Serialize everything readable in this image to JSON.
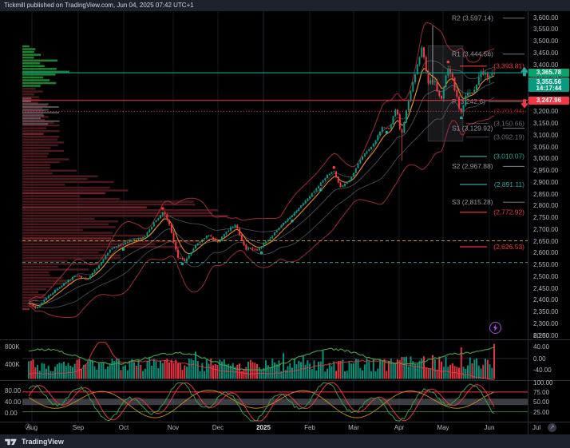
{
  "header": {
    "publish_note": "Tickmill published on TradingView.com, Jun 04, 2025 07:42 UTC+1"
  },
  "footer": {
    "brand": "TradingView"
  },
  "price_axis": {
    "max": 3600,
    "min": 2250,
    "step": 50,
    "boxes": {
      "current": {
        "text": "3,365.78",
        "price": 3365.78,
        "bg": "#0aa26c"
      },
      "countdown": {
        "line1": "3,355.56",
        "line2": "14:17:44",
        "price": 3355.56,
        "bg": "#089981"
      },
      "lower": {
        "text": "3,247.96",
        "price": 3247.96,
        "bg": "#f23645"
      }
    }
  },
  "chart_data": {
    "type": "candlestick",
    "bars": 213,
    "ylim": [
      2250,
      3650
    ],
    "x_months": [
      "Aug",
      "Sep",
      "Oct",
      "Nov",
      "Dec",
      "2025",
      "Feb",
      "Mar",
      "Apr",
      "May",
      "Jun",
      "Jul"
    ],
    "last_price": 3365.78,
    "price_path_anchors": [
      [
        0,
        2390
      ],
      [
        0.015,
        2362
      ],
      [
        0.04,
        2415
      ],
      [
        0.07,
        2462
      ],
      [
        0.1,
        2505
      ],
      [
        0.125,
        2488
      ],
      [
        0.15,
        2545
      ],
      [
        0.175,
        2618
      ],
      [
        0.2,
        2638
      ],
      [
        0.225,
        2655
      ],
      [
        0.25,
        2672
      ],
      [
        0.275,
        2745
      ],
      [
        0.29,
        2778
      ],
      [
        0.305,
        2700
      ],
      [
        0.32,
        2585
      ],
      [
        0.335,
        2568
      ],
      [
        0.36,
        2635
      ],
      [
        0.385,
        2678
      ],
      [
        0.405,
        2645
      ],
      [
        0.43,
        2700
      ],
      [
        0.445,
        2718
      ],
      [
        0.465,
        2618
      ],
      [
        0.49,
        2615
      ],
      [
        0.515,
        2655
      ],
      [
        0.54,
        2712
      ],
      [
        0.565,
        2758
      ],
      [
        0.59,
        2812
      ],
      [
        0.615,
        2868
      ],
      [
        0.64,
        2928
      ],
      [
        0.655,
        2950
      ],
      [
        0.67,
        2878
      ],
      [
        0.69,
        2912
      ],
      [
        0.715,
        3005
      ],
      [
        0.74,
        3062
      ],
      [
        0.76,
        3135
      ],
      [
        0.775,
        3128
      ],
      [
        0.79,
        3222
      ],
      [
        0.8,
        3095
      ],
      [
        0.815,
        3242
      ],
      [
        0.83,
        3355
      ],
      [
        0.845,
        3478
      ],
      [
        0.858,
        3322
      ],
      [
        0.872,
        3335
      ],
      [
        0.885,
        3238
      ],
      [
        0.9,
        3392
      ],
      [
        0.912,
        3328
      ],
      [
        0.928,
        3182
      ],
      [
        0.944,
        3295
      ],
      [
        0.958,
        3288
      ],
      [
        0.972,
        3372
      ],
      [
        0.985,
        3352
      ],
      [
        1,
        3365.78
      ]
    ],
    "volume_profile_envelope": [
      [
        2355,
        10
      ],
      [
        2390,
        20
      ],
      [
        2430,
        34
      ],
      [
        2470,
        52
      ],
      [
        2505,
        58
      ],
      [
        2540,
        70
      ],
      [
        2570,
        85
      ],
      [
        2600,
        120
      ],
      [
        2635,
        175
      ],
      [
        2665,
        160
      ],
      [
        2690,
        115
      ],
      [
        2720,
        135
      ],
      [
        2760,
        195
      ],
      [
        2790,
        205
      ],
      [
        2820,
        165
      ],
      [
        2860,
        110
      ],
      [
        2910,
        84
      ],
      [
        2960,
        66
      ],
      [
        3000,
        56
      ],
      [
        3040,
        50
      ],
      [
        3080,
        46
      ],
      [
        3120,
        40
      ],
      [
        3160,
        44
      ],
      [
        3200,
        34
      ],
      [
        3230,
        22
      ],
      [
        3260,
        18
      ],
      [
        3295,
        24
      ],
      [
        3330,
        42
      ],
      [
        3370,
        55
      ],
      [
        3410,
        42
      ],
      [
        3450,
        16
      ],
      [
        3480,
        12
      ]
    ],
    "levels": [
      {
        "text": "R2 (3,597.14)",
        "price": 3597.14,
        "kind": "pivot"
      },
      {
        "text": "R1 (3,444.56)",
        "price": 3444.56,
        "kind": "pivot"
      },
      {
        "text": "(3,393.81)",
        "price": 3393.81,
        "kind": "mid",
        "color": "#f23645"
      },
      {
        "text": "P (3,242.6)",
        "price": 3242.6,
        "kind": "pivot-hidden"
      },
      {
        "text": "(3,201.94)",
        "price": 3201.94,
        "kind": "mid-dim",
        "color": "#f23645"
      },
      {
        "text": "(3,150.66)",
        "price": 3150.66,
        "kind": "mid-gray",
        "color": "#787b86"
      },
      {
        "text": "S1 (3,129.92)",
        "price": 3129.92,
        "kind": "pivot"
      },
      {
        "text": "(3,092.19)",
        "price": 3092.19,
        "kind": "mid-gray",
        "color": "#787b86"
      },
      {
        "text": "(3,010.07)",
        "price": 3010.07,
        "kind": "mid",
        "color": "#26a69a"
      },
      {
        "text": "S2 (2,967.88)",
        "price": 2967.88,
        "kind": "pivot"
      },
      {
        "text": "(2,891.11)",
        "price": 2891.11,
        "kind": "mid",
        "color": "#26a69a"
      },
      {
        "text": "S3 (2,815.28)",
        "price": 2815.28,
        "kind": "pivot"
      },
      {
        "text": "(2,772.92)",
        "price": 2772.92,
        "kind": "mid",
        "color": "#f23645"
      },
      {
        "text": "(2,626.53)",
        "price": 2626.53,
        "kind": "mid",
        "color": "#f23645"
      }
    ],
    "full_lines": [
      {
        "price": 3365.78,
        "color": "#089981",
        "dash": "solid",
        "width": 1.2
      },
      {
        "price": 3247.96,
        "color": "#f23645",
        "dash": "solid",
        "width": 1
      },
      {
        "price": 3201.94,
        "color": "#f23645",
        "dash": "dotted",
        "width": 1
      },
      {
        "price": 2652,
        "color": "#c8871e",
        "dash": "dashed",
        "width": 1
      },
      {
        "price": 2560,
        "color": "#26a69a",
        "dash": "dashed",
        "width": 1
      }
    ],
    "signal_arrows": [
      {
        "dir": "up",
        "price": 3372,
        "color": "#26a69a"
      },
      {
        "dir": "down",
        "price": 3233,
        "color": "#f23645"
      }
    ],
    "selection_box": {
      "x1_frac": 0.858,
      "x2_frac": 0.933,
      "price_top": 3480,
      "price_bottom": 3075
    },
    "volume": {
      "left_labels": [
        "800K",
        "400K"
      ],
      "right_labels": [
        "80.00",
        "40.00",
        "0.00",
        "-40.00"
      ],
      "ylim_k": [
        0,
        900
      ]
    },
    "oscillator": {
      "left_labels": [
        "80.00",
        "40.00",
        "0.00"
      ],
      "right_labels": [
        "100.00",
        "75.00",
        "50.00",
        "25.00"
      ],
      "range": [
        0,
        100
      ],
      "overbought_line": 75,
      "oversold_line": 25,
      "mid_band": [
        42,
        58
      ]
    }
  },
  "badges": {
    "lightning_color": "#b24bf3"
  }
}
